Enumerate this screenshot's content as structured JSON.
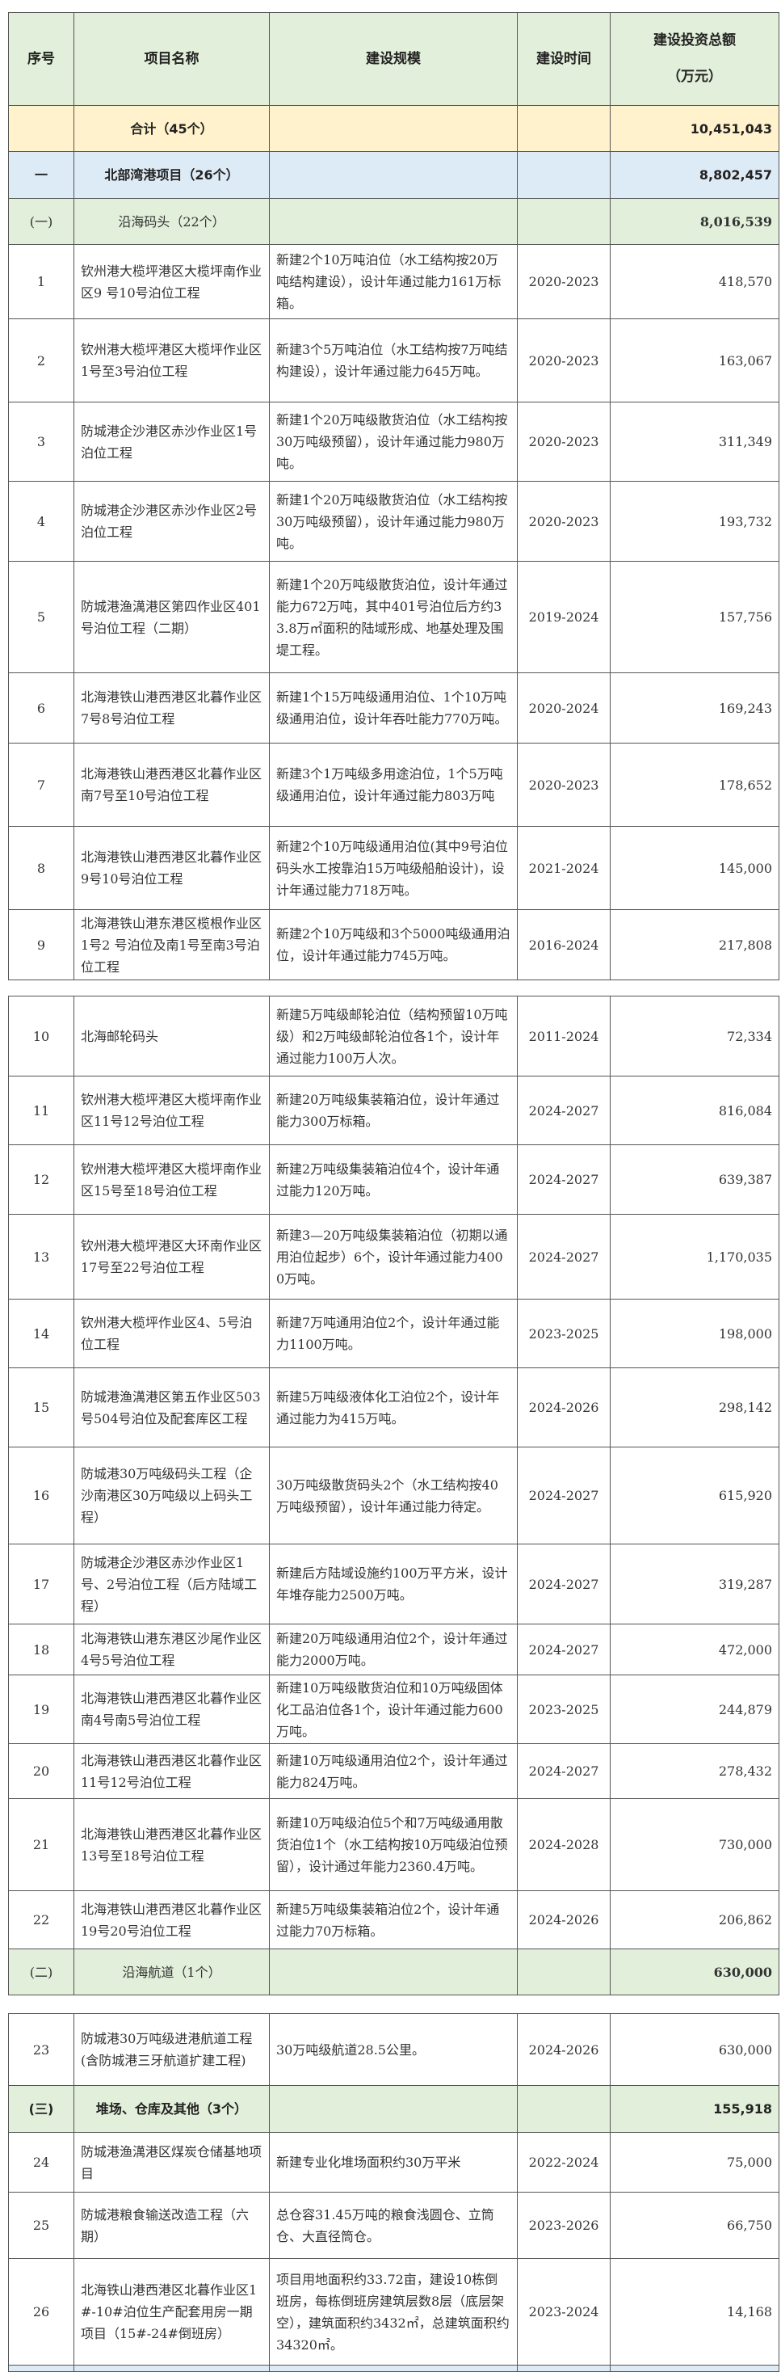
{
  "header": {
    "seq": "序号",
    "name": "项目名称",
    "scale": "建设规模",
    "period": "建设时间",
    "invest_line1": "建设投资总额",
    "invest_line2": "（万元）"
  },
  "colors": {
    "header_bg": "#e2efda",
    "total_bg": "#fff2cc",
    "section_bg": "#ddebf7",
    "subsection_bg": "#e2efda"
  },
  "rows": [
    {
      "type": "total",
      "seq": "",
      "name": "合计（45个）",
      "scale": "",
      "period": "",
      "invest": "10,451,043"
    },
    {
      "type": "sec",
      "seq": "一",
      "name": "北部湾港项目（26个）",
      "scale": "",
      "period": "",
      "invest": "8,802,457"
    },
    {
      "type": "sub",
      "seq": "(一)",
      "name": "沿海码头（22个）",
      "scale": "",
      "period": "",
      "invest": "8,016,539"
    },
    {
      "type": "item",
      "seq": "1",
      "name": "钦州港大榄坪港区大榄坪南作业区9 号10号泊位工程",
      "scale": "新建2个10万吨泊位（水工结构按20万吨结构建设），设计年通过能力161万标箱。",
      "period": "2020-2023",
      "invest": "418,570"
    },
    {
      "type": "item",
      "seq": "2",
      "name": "钦州港大榄坪港区大榄坪作业区1号至3号泊位工程",
      "scale": "新建3个5万吨泊位（水工结构按7万吨结构建设），设计年通过能力645万吨。",
      "period": "2020-2023",
      "invest": "163,067"
    },
    {
      "type": "item",
      "seq": "3",
      "name": "防城港企沙港区赤沙作业区1号泊位工程",
      "scale": "新建1个20万吨级散货泊位（水工结构按30万吨级预留），设计年通过能力980万吨。",
      "period": "2020-2023",
      "invest": "311,349"
    },
    {
      "type": "item",
      "seq": "4",
      "name": "防城港企沙港区赤沙作业区2号泊位工程",
      "scale": "新建1个20万吨级散货泊位（水工结构按30万吨级预留），设计年通过能力980万吨。",
      "period": "2020-2023",
      "invest": "193,732"
    },
    {
      "type": "item",
      "seq": "5",
      "name": "防城港渔澫港区第四作业区401号泊位工程（二期）",
      "scale": "新建1个20万吨级散货泊位，设计年通过能力672万吨，其中401号泊位后方约33.8万㎡面积的陆域形成、地基处理及围堤工程。",
      "period": "2019-2024",
      "invest": "157,756"
    },
    {
      "type": "item",
      "seq": "6",
      "name": "北海港铁山港西港区北暮作业区7号8号泊位工程",
      "scale": "新建1个15万吨级通用泊位、1个10万吨级通用泊位，设计年吞吐能力770万吨。",
      "period": "2020-2024",
      "invest": "169,243"
    },
    {
      "type": "item",
      "seq": "7",
      "name": "北海港铁山港西港区北暮作业区南7号至10号泊位工程",
      "scale": "新建3个1万吨级多用途泊位，1个5万吨级通用泊位，设计年通过能力803万吨",
      "period": "2020-2023",
      "invest": "178,652"
    },
    {
      "type": "item",
      "seq": "8",
      "name": "北海港铁山港西港区北暮作业区9号10号泊位工程",
      "scale": "新建2个10万吨级通用泊位(其中9号泊位码头水工按靠泊15万吨级船舶设计)，设计年通过能力718万吨。",
      "period": "2021-2024",
      "invest": "145,000"
    },
    {
      "type": "item",
      "seq": "9",
      "name": "北海港铁山港东港区榄根作业区1号2 号泊位及南1号至南3号泊位工程",
      "scale": "新建2个10万吨级和3个5000吨级通用泊位，设计年通过能力745万吨。",
      "period": "2016-2024",
      "invest": "217,808"
    },
    {
      "type": "item",
      "seq": "10",
      "name": "北海邮轮码头",
      "scale": "新建5万吨级邮轮泊位（结构预留10万吨级）和2万吨级邮轮泊位各1个，设计年通过能力100万人次。",
      "period": "2011-2024",
      "invest": "72,334"
    },
    {
      "type": "item",
      "seq": "11",
      "name": "钦州港大榄坪港区大榄坪南作业区11号12号泊位工程",
      "scale": "新建20万吨级集装箱泊位，设计年通过能力300万标箱。",
      "period": "2024-2027",
      "invest": "816,084"
    },
    {
      "type": "item",
      "seq": "12",
      "name": "钦州港大榄坪港区大榄坪南作业区15号至18号泊位工程",
      "scale": "新建2万吨级集装箱泊位4个，设计年通过能力120万吨。",
      "period": "2024-2027",
      "invest": "639,387"
    },
    {
      "type": "item",
      "seq": "13",
      "name": "钦州港大榄坪港区大环南作业区17号至22号泊位工程",
      "scale": "新建3—20万吨级集装箱泊位（初期以通用泊位起步）6个，设计年通过能力4000万吨。",
      "period": "2024-2027",
      "invest": "1,170,035"
    },
    {
      "type": "item",
      "seq": "14",
      "name": "钦州港大榄坪作业区4、5号泊位工程",
      "scale": "新建7万吨通用泊位2个，设计年通过能力1100万吨。",
      "period": "2023-2025",
      "invest": "198,000"
    },
    {
      "type": "item",
      "seq": "15",
      "name": "防城港渔澫港区第五作业区503号504号泊位及配套库区工程",
      "scale": "新建5万吨级液体化工泊位2个，设计年通过能力为415万吨。",
      "period": "2024-2026",
      "invest": "298,142"
    },
    {
      "type": "item",
      "seq": "16",
      "name": "防城港30万吨级码头工程（企沙南港区30万吨级以上码头工程）",
      "scale": "30万吨级散货码头2个（水工结构按40万吨级预留），设计年通过能力待定。",
      "period": "2024-2027",
      "invest": "615,920"
    },
    {
      "type": "item",
      "seq": "17",
      "name": "防城港企沙港区赤沙作业区1号、2号泊位工程（后方陆域工程）",
      "scale": "新建后方陆域设施约100万平方米，设计年堆存能力2500万吨。",
      "period": "2024-2027",
      "invest": "319,287"
    },
    {
      "type": "item",
      "seq": "18",
      "name": "北海港铁山港东港区沙尾作业区4号5号泊位工程",
      "scale": "新建20万吨级通用泊位2个，设计年通过能力2000万吨。",
      "period": "2024-2027",
      "invest": "472,000"
    },
    {
      "type": "item",
      "seq": "19",
      "name": "北海港铁山港西港区北暮作业区南4号南5号泊位工程",
      "scale": "新建10万吨级散货泊位和10万吨级固体化工品泊位各1个，设计年通过能力600万吨。",
      "period": "2023-2025",
      "invest": "244,879"
    },
    {
      "type": "item",
      "seq": "20",
      "name": "北海港铁山港西港区北暮作业区11号12号泊位工程",
      "scale": "新建10万吨级通用泊位2个，设计年通过能力824万吨。",
      "period": "2024-2027",
      "invest": "278,432"
    },
    {
      "type": "item",
      "seq": "21",
      "name": "北海港铁山港西港区北暮作业区13号至18号泊位工程",
      "scale": "新建10万吨级泊位5个和7万吨级通用散货泊位1个（水工结构按10万吨级泊位预留），设计通过年能力2360.4万吨。",
      "period": "2024-2028",
      "invest": "730,000"
    },
    {
      "type": "item",
      "seq": "22",
      "name": "北海港铁山港西港区北暮作业区19号20号泊位工程",
      "scale": "新建5万吨级集装箱泊位2个，设计年通过能力70万标箱。",
      "period": "2024-2026",
      "invest": "206,862"
    },
    {
      "type": "sub",
      "seq": "(二)",
      "name": "沿海航道（1个）",
      "scale": "",
      "period": "",
      "invest": "630,000"
    },
    {
      "type": "item",
      "seq": "23",
      "name": "防城港30万吨级进港航道工程(含防城港三牙航道扩建工程)",
      "scale": "30万吨级航道28.5公里。",
      "period": "2024-2026",
      "invest": "630,000"
    },
    {
      "type": "sub",
      "seq": "(三)",
      "name": "堆场、仓库及其他（3个）",
      "scale": "",
      "period": "",
      "invest": "155,918"
    },
    {
      "type": "item",
      "seq": "24",
      "name": "防城港渔澫港区煤炭仓储基地项目",
      "scale": "新建专业化堆场面积约30万平米",
      "period": "2022-2024",
      "invest": "75,000"
    },
    {
      "type": "item",
      "seq": "25",
      "name": "防城港粮食输送改造工程（六期）",
      "scale": "总仓容31.45万吨的粮食浅圆仓、立筒仓、大直径筒仓。",
      "period": "2023-2026",
      "invest": "66,750"
    },
    {
      "type": "item",
      "seq": "26",
      "name": "北海铁山港西港区北暮作业区1#-10#泊位生产配套用房一期项目（15#-24#倒班房）",
      "scale": "项目用地面积约33.72亩，建设10栋倒班房，每栋倒班房建筑层数8层（底层架空），建筑面积约3432㎡，总建筑面积约34320㎡。",
      "period": "2023-2024",
      "invest": "14,168"
    },
    {
      "type": "sec",
      "seq": "",
      "name": "",
      "scale": "",
      "period": "",
      "invest": ""
    }
  ]
}
